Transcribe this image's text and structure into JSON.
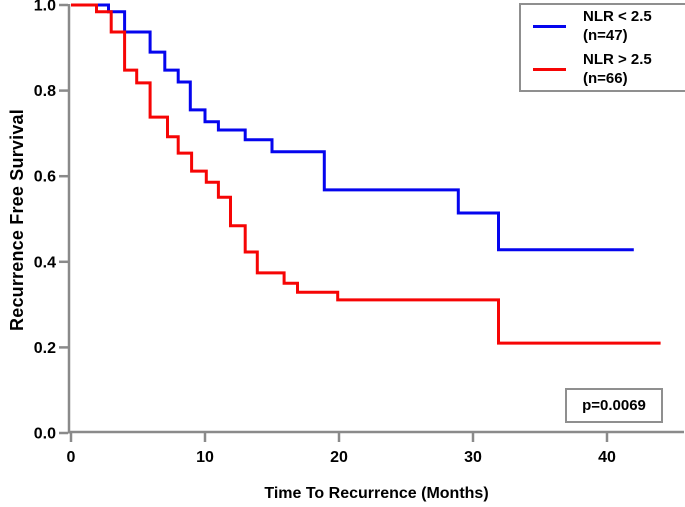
{
  "figure": {
    "background": "#ffffff",
    "axis_color": "#8a8a8a",
    "box_border_color": "#8f8f8f"
  },
  "annotation": {
    "p_value": "p=0.0069"
  },
  "legend": {
    "entries": [
      {
        "label_line1": "NLR < 2.5",
        "label_line2": "(n=47)",
        "color": "#0505ee"
      },
      {
        "label_line1": "NLR > 2.5",
        "label_line2": "(n=66)",
        "color": "#f60505"
      }
    ]
  },
  "chart_data": {
    "type": "line",
    "subtype": "kaplan_meier_step",
    "title": "",
    "xlabel": "Time To Recurrence (Months)",
    "ylabel": "Recurrence Free Survival",
    "xlim": [
      0,
      45.8
    ],
    "ylim": [
      0.0,
      1.0
    ],
    "grid": false,
    "legend_position": "top-right",
    "xticks": {
      "values": [
        0,
        10,
        20,
        30,
        40
      ],
      "labels": [
        "0",
        "10",
        "20",
        "30",
        "40"
      ]
    },
    "yticks": {
      "values": [
        0.0,
        0.2,
        0.4,
        0.6,
        0.8,
        1.0
      ],
      "labels": [
        "0.0",
        "0.2",
        "0.4",
        "0.6",
        "0.8",
        "1.0"
      ]
    },
    "p_value": "p=0.0069",
    "series": [
      {
        "name": "NLR < 2.5 (n=47)",
        "color": "#0505ee",
        "steps": [
          [
            0,
            1.0
          ],
          [
            2.8,
            0.984
          ],
          [
            4.0,
            0.937
          ],
          [
            5.9,
            0.89
          ],
          [
            7.0,
            0.848
          ],
          [
            8.0,
            0.82
          ],
          [
            8.9,
            0.755
          ],
          [
            10.0,
            0.727
          ],
          [
            11.0,
            0.708
          ],
          [
            13.0,
            0.685
          ],
          [
            15.0,
            0.657
          ],
          [
            18.9,
            0.568
          ],
          [
            28.9,
            0.514
          ],
          [
            31.9,
            0.428
          ]
        ],
        "end_time": 42.0
      },
      {
        "name": "NLR > 2.5 (n=66)",
        "color": "#f60505",
        "steps": [
          [
            0,
            1.0
          ],
          [
            1.9,
            0.984
          ],
          [
            3.0,
            0.937
          ],
          [
            4.0,
            0.848
          ],
          [
            4.9,
            0.818
          ],
          [
            5.9,
            0.738
          ],
          [
            7.2,
            0.692
          ],
          [
            8.0,
            0.654
          ],
          [
            9.0,
            0.612
          ],
          [
            10.1,
            0.586
          ],
          [
            11.0,
            0.551
          ],
          [
            11.9,
            0.484
          ],
          [
            13.0,
            0.423
          ],
          [
            13.9,
            0.374
          ],
          [
            15.9,
            0.35
          ],
          [
            16.9,
            0.329
          ],
          [
            19.9,
            0.311
          ],
          [
            31.9,
            0.21
          ]
        ],
        "end_time": 44.0
      }
    ]
  }
}
